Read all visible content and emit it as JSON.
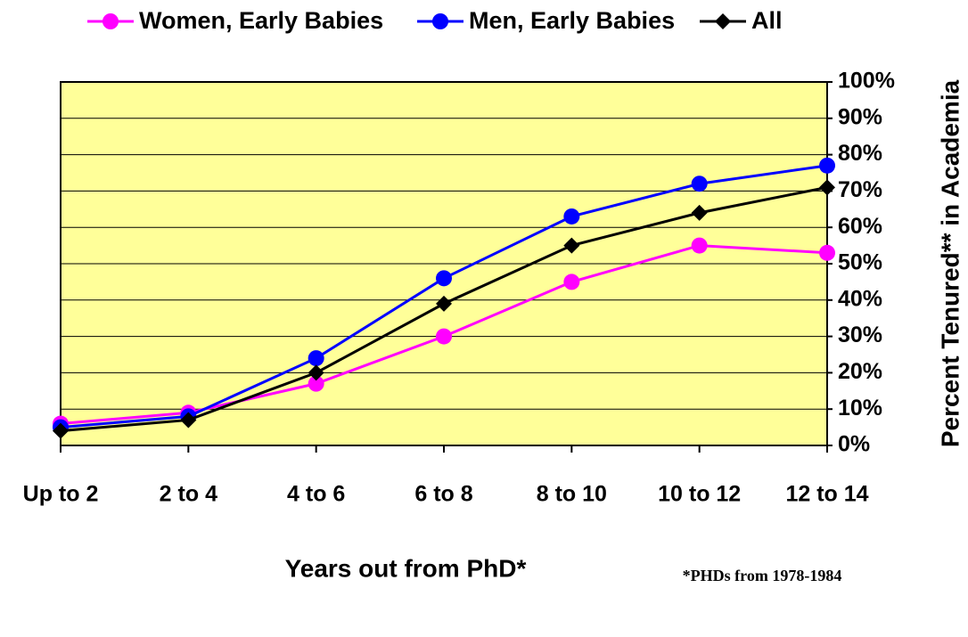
{
  "chart_data": {
    "type": "line",
    "categories": [
      "Up to 2",
      "2 to 4",
      "4 to 6",
      "6 to 8",
      "8 to 10",
      "10 to 12",
      "12 to 14"
    ],
    "series": [
      {
        "name": "Women, Early Babies",
        "color": "#ff00ff",
        "marker": "circle",
        "values": [
          6,
          9,
          17,
          30,
          45,
          55,
          53
        ]
      },
      {
        "name": "Men, Early Babies",
        "color": "#0000ff",
        "marker": "circle",
        "values": [
          5,
          8,
          24,
          46,
          63,
          72,
          77
        ]
      },
      {
        "name": "All",
        "color": "#000000",
        "marker": "diamond",
        "values": [
          4,
          7,
          20,
          39,
          55,
          64,
          71
        ]
      }
    ],
    "ylim": [
      0,
      100
    ],
    "yticks": [
      {
        "value": 0,
        "label": "0%"
      },
      {
        "value": 10,
        "label": "10%"
      },
      {
        "value": 20,
        "label": "20%"
      },
      {
        "value": 30,
        "label": "30%"
      },
      {
        "value": 40,
        "label": "40%"
      },
      {
        "value": 50,
        "label": "50%"
      },
      {
        "value": 60,
        "label": "60%"
      },
      {
        "value": 70,
        "label": "70%"
      },
      {
        "value": 80,
        "label": "80%"
      },
      {
        "value": 90,
        "label": "90%"
      },
      {
        "value": 100,
        "label": "100%"
      }
    ],
    "y_axis_side": "right",
    "grid": true,
    "plot_background": "#ffff99",
    "x_label": "Years out from PhD*",
    "y_label": "Percent Tenured** in Academia",
    "annotation": "*PHDs from 1978-1984",
    "legend": "top"
  }
}
